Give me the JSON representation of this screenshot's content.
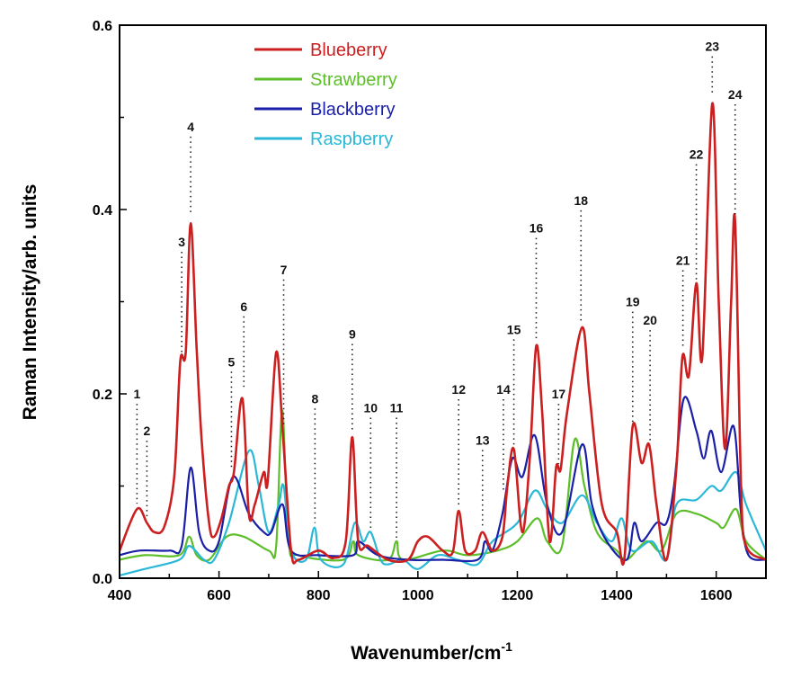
{
  "chart_data": {
    "type": "line",
    "title": "",
    "xlabel": "Wavenumber/cm",
    "xlabel_superscript": "-1",
    "ylabel": "Raman Intensity/arb. units",
    "xlim": [
      400,
      1700
    ],
    "ylim": [
      0,
      0.6
    ],
    "xticks": [
      "400",
      "600",
      "800",
      "1000",
      "1200",
      "1400",
      "1600"
    ],
    "yticks": [
      "0.0",
      "0.2",
      "0.4",
      "0.6"
    ],
    "grid": false,
    "legend_position": "top-left",
    "series": [
      {
        "name": "Blueberry",
        "color": "#cc1f1f",
        "points": [
          [
            400,
            0.03
          ],
          [
            435,
            0.075
          ],
          [
            455,
            0.06
          ],
          [
            470,
            0.05
          ],
          [
            490,
            0.056
          ],
          [
            510,
            0.11
          ],
          [
            522,
            0.235
          ],
          [
            533,
            0.245
          ],
          [
            543,
            0.385
          ],
          [
            555,
            0.25
          ],
          [
            565,
            0.15
          ],
          [
            580,
            0.06
          ],
          [
            590,
            0.045
          ],
          [
            605,
            0.065
          ],
          [
            620,
            0.1
          ],
          [
            630,
            0.115
          ],
          [
            647,
            0.195
          ],
          [
            660,
            0.07
          ],
          [
            672,
            0.08
          ],
          [
            690,
            0.115
          ],
          [
            698,
            0.105
          ],
          [
            715,
            0.245
          ],
          [
            728,
            0.16
          ],
          [
            745,
            0.03
          ],
          [
            760,
            0.02
          ],
          [
            800,
            0.03
          ],
          [
            830,
            0.022
          ],
          [
            855,
            0.04
          ],
          [
            868,
            0.153
          ],
          [
            880,
            0.04
          ],
          [
            900,
            0.035
          ],
          [
            940,
            0.02
          ],
          [
            980,
            0.02
          ],
          [
            1000,
            0.04
          ],
          [
            1020,
            0.045
          ],
          [
            1050,
            0.03
          ],
          [
            1070,
            0.028
          ],
          [
            1082,
            0.073
          ],
          [
            1095,
            0.03
          ],
          [
            1115,
            0.03
          ],
          [
            1130,
            0.05
          ],
          [
            1150,
            0.03
          ],
          [
            1170,
            0.045
          ],
          [
            1180,
            0.1
          ],
          [
            1193,
            0.14
          ],
          [
            1210,
            0.05
          ],
          [
            1225,
            0.13
          ],
          [
            1238,
            0.252
          ],
          [
            1250,
            0.18
          ],
          [
            1265,
            0.04
          ],
          [
            1278,
            0.12
          ],
          [
            1287,
            0.118
          ],
          [
            1300,
            0.18
          ],
          [
            1330,
            0.272
          ],
          [
            1345,
            0.2
          ],
          [
            1370,
            0.08
          ],
          [
            1400,
            0.05
          ],
          [
            1415,
            0.02
          ],
          [
            1432,
            0.165
          ],
          [
            1450,
            0.125
          ],
          [
            1465,
            0.145
          ],
          [
            1480,
            0.08
          ],
          [
            1500,
            0.02
          ],
          [
            1520,
            0.12
          ],
          [
            1532,
            0.24
          ],
          [
            1545,
            0.22
          ],
          [
            1560,
            0.32
          ],
          [
            1572,
            0.24
          ],
          [
            1592,
            0.515
          ],
          [
            1605,
            0.3
          ],
          [
            1618,
            0.14
          ],
          [
            1630,
            0.3
          ],
          [
            1638,
            0.387
          ],
          [
            1650,
            0.1
          ],
          [
            1660,
            0.035
          ],
          [
            1700,
            0.02
          ]
        ]
      },
      {
        "name": "Strawberry",
        "color": "#5cbf2a",
        "points": [
          [
            400,
            0.02
          ],
          [
            450,
            0.025
          ],
          [
            520,
            0.025
          ],
          [
            540,
            0.045
          ],
          [
            555,
            0.025
          ],
          [
            580,
            0.02
          ],
          [
            615,
            0.045
          ],
          [
            650,
            0.045
          ],
          [
            700,
            0.03
          ],
          [
            715,
            0.035
          ],
          [
            727,
            0.182
          ],
          [
            740,
            0.04
          ],
          [
            760,
            0.025
          ],
          [
            850,
            0.02
          ],
          [
            870,
            0.04
          ],
          [
            880,
            0.025
          ],
          [
            940,
            0.02
          ],
          [
            957,
            0.04
          ],
          [
            970,
            0.02
          ],
          [
            1050,
            0.03
          ],
          [
            1100,
            0.025
          ],
          [
            1160,
            0.03
          ],
          [
            1200,
            0.04
          ],
          [
            1240,
            0.065
          ],
          [
            1260,
            0.04
          ],
          [
            1290,
            0.035
          ],
          [
            1315,
            0.15
          ],
          [
            1335,
            0.1
          ],
          [
            1360,
            0.05
          ],
          [
            1400,
            0.03
          ],
          [
            1420,
            0.02
          ],
          [
            1460,
            0.04
          ],
          [
            1490,
            0.03
          ],
          [
            1520,
            0.07
          ],
          [
            1560,
            0.07
          ],
          [
            1600,
            0.06
          ],
          [
            1615,
            0.055
          ],
          [
            1640,
            0.075
          ],
          [
            1660,
            0.04
          ],
          [
            1700,
            0.02
          ]
        ]
      },
      {
        "name": "Blackberry",
        "color": "#1a1fa8",
        "points": [
          [
            400,
            0.025
          ],
          [
            440,
            0.03
          ],
          [
            500,
            0.03
          ],
          [
            525,
            0.035
          ],
          [
            543,
            0.12
          ],
          [
            560,
            0.05
          ],
          [
            580,
            0.03
          ],
          [
            600,
            0.04
          ],
          [
            628,
            0.11
          ],
          [
            660,
            0.07
          ],
          [
            690,
            0.05
          ],
          [
            705,
            0.05
          ],
          [
            728,
            0.08
          ],
          [
            745,
            0.03
          ],
          [
            800,
            0.025
          ],
          [
            870,
            0.025
          ],
          [
            880,
            0.04
          ],
          [
            920,
            0.025
          ],
          [
            980,
            0.02
          ],
          [
            1050,
            0.02
          ],
          [
            1120,
            0.02
          ],
          [
            1135,
            0.04
          ],
          [
            1150,
            0.03
          ],
          [
            1170,
            0.07
          ],
          [
            1190,
            0.13
          ],
          [
            1210,
            0.11
          ],
          [
            1235,
            0.155
          ],
          [
            1260,
            0.08
          ],
          [
            1290,
            0.05
          ],
          [
            1330,
            0.145
          ],
          [
            1350,
            0.08
          ],
          [
            1380,
            0.04
          ],
          [
            1420,
            0.02
          ],
          [
            1435,
            0.06
          ],
          [
            1450,
            0.04
          ],
          [
            1480,
            0.06
          ],
          [
            1500,
            0.06
          ],
          [
            1515,
            0.1
          ],
          [
            1535,
            0.195
          ],
          [
            1560,
            0.16
          ],
          [
            1575,
            0.13
          ],
          [
            1590,
            0.16
          ],
          [
            1610,
            0.115
          ],
          [
            1635,
            0.165
          ],
          [
            1650,
            0.07
          ],
          [
            1665,
            0.025
          ],
          [
            1700,
            0.02
          ]
        ]
      },
      {
        "name": "Raspberry",
        "color": "#2ab8d6",
        "points": [
          [
            400,
            0.003
          ],
          [
            450,
            0.01
          ],
          [
            520,
            0.02
          ],
          [
            540,
            0.035
          ],
          [
            570,
            0.02
          ],
          [
            590,
            0.02
          ],
          [
            620,
            0.06
          ],
          [
            660,
            0.138
          ],
          [
            680,
            0.1
          ],
          [
            700,
            0.05
          ],
          [
            720,
            0.08
          ],
          [
            730,
            0.1
          ],
          [
            745,
            0.03
          ],
          [
            775,
            0.02
          ],
          [
            792,
            0.055
          ],
          [
            805,
            0.02
          ],
          [
            850,
            0.015
          ],
          [
            873,
            0.06
          ],
          [
            890,
            0.04
          ],
          [
            905,
            0.05
          ],
          [
            925,
            0.02
          ],
          [
            940,
            0.015
          ],
          [
            970,
            0.02
          ],
          [
            1000,
            0.01
          ],
          [
            1040,
            0.025
          ],
          [
            1080,
            0.02
          ],
          [
            1120,
            0.015
          ],
          [
            1150,
            0.04
          ],
          [
            1200,
            0.06
          ],
          [
            1235,
            0.095
          ],
          [
            1260,
            0.075
          ],
          [
            1290,
            0.06
          ],
          [
            1330,
            0.09
          ],
          [
            1360,
            0.06
          ],
          [
            1390,
            0.04
          ],
          [
            1410,
            0.065
          ],
          [
            1430,
            0.03
          ],
          [
            1470,
            0.04
          ],
          [
            1500,
            0.02
          ],
          [
            1520,
            0.08
          ],
          [
            1560,
            0.085
          ],
          [
            1590,
            0.1
          ],
          [
            1610,
            0.095
          ],
          [
            1640,
            0.115
          ],
          [
            1660,
            0.08
          ],
          [
            1700,
            0.03
          ]
        ]
      }
    ],
    "annotations": [
      {
        "label": "1",
        "x": 435,
        "y": 0.077,
        "label_y": 0.195
      },
      {
        "label": "2",
        "x": 455,
        "y": 0.06,
        "label_y": 0.155
      },
      {
        "label": "3",
        "x": 525,
        "y": 0.24,
        "label_y": 0.36
      },
      {
        "label": "4",
        "x": 543,
        "y": 0.39,
        "label_y": 0.485
      },
      {
        "label": "5",
        "x": 625,
        "y": 0.115,
        "label_y": 0.23
      },
      {
        "label": "6",
        "x": 650,
        "y": 0.2,
        "label_y": 0.29
      },
      {
        "label": "7",
        "x": 730,
        "y": 0.16,
        "label_y": 0.33
      },
      {
        "label": "8",
        "x": 793,
        "y": 0.056,
        "label_y": 0.19
      },
      {
        "label": "9",
        "x": 868,
        "y": 0.155,
        "label_y": 0.26
      },
      {
        "label": "10",
        "x": 905,
        "y": 0.05,
        "label_y": 0.18
      },
      {
        "label": "11",
        "x": 957,
        "y": 0.04,
        "label_y": 0.18
      },
      {
        "label": "12",
        "x": 1082,
        "y": 0.075,
        "label_y": 0.2
      },
      {
        "label": "13",
        "x": 1130,
        "y": 0.05,
        "label_y": 0.145
      },
      {
        "label": "14",
        "x": 1172,
        "y": 0.09,
        "label_y": 0.2
      },
      {
        "label": "15",
        "x": 1193,
        "y": 0.14,
        "label_y": 0.265
      },
      {
        "label": "16",
        "x": 1238,
        "y": 0.255,
        "label_y": 0.375
      },
      {
        "label": "17",
        "x": 1283,
        "y": 0.12,
        "label_y": 0.195
      },
      {
        "label": "18",
        "x": 1328,
        "y": 0.275,
        "label_y": 0.405
      },
      {
        "label": "19",
        "x": 1432,
        "y": 0.165,
        "label_y": 0.295
      },
      {
        "label": "20",
        "x": 1467,
        "y": 0.145,
        "label_y": 0.275
      },
      {
        "label": "21",
        "x": 1533,
        "y": 0.245,
        "label_y": 0.34
      },
      {
        "label": "22",
        "x": 1560,
        "y": 0.32,
        "label_y": 0.455
      },
      {
        "label": "23",
        "x": 1592,
        "y": 0.52,
        "label_y": 0.572
      },
      {
        "label": "24",
        "x": 1638,
        "y": 0.39,
        "label_y": 0.52
      }
    ]
  }
}
